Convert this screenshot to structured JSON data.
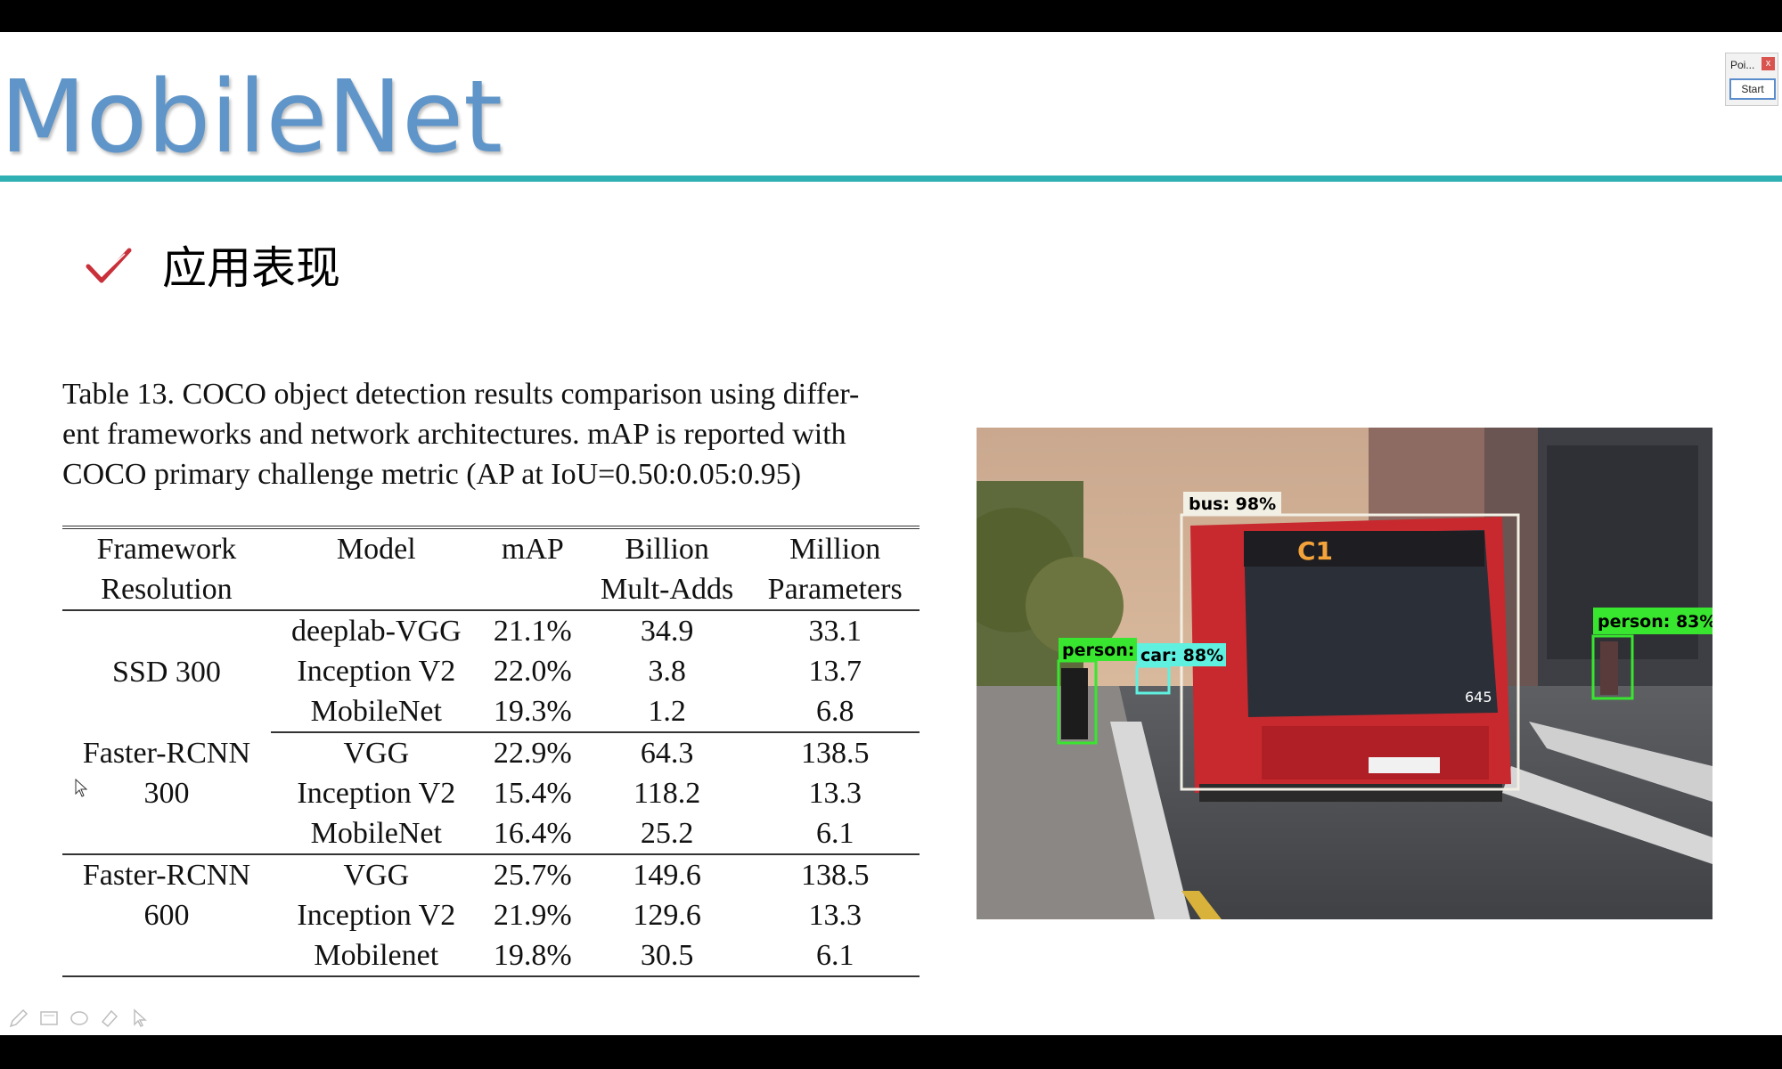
{
  "slide": {
    "title": "MobileNet",
    "bullet": "应用表现",
    "caption_lines": [
      "Table 13. COCO object detection results comparison using differ-",
      "ent frameworks and network architectures.  mAP is reported with",
      "COCO primary challenge metric (AP at IoU=0.50:0.05:0.95)"
    ]
  },
  "table": {
    "headers": {
      "framework": [
        "Framework",
        "Resolution"
      ],
      "model": "Model",
      "map": "mAP",
      "mult_adds": [
        "Billion",
        "Mult-Adds"
      ],
      "params": [
        "Million",
        "Parameters"
      ]
    },
    "groups": [
      {
        "framework": [
          "SSD 300"
        ],
        "rows": [
          {
            "model": "deeplab-VGG",
            "map": "21.1%",
            "mult_adds": "34.9",
            "params": "33.1"
          },
          {
            "model": "Inception V2",
            "map": "22.0%",
            "mult_adds": "3.8",
            "params": "13.7"
          },
          {
            "model": "MobileNet",
            "map": "19.3%",
            "mult_adds": "1.2",
            "params": "6.8"
          }
        ]
      },
      {
        "framework": [
          "Faster-RCNN",
          "300"
        ],
        "rows": [
          {
            "model": "VGG",
            "map": "22.9%",
            "mult_adds": "64.3",
            "params": "138.5"
          },
          {
            "model": "Inception V2",
            "map": "15.4%",
            "mult_adds": "118.2",
            "params": "13.3"
          },
          {
            "model": "MobileNet",
            "map": "16.4%",
            "mult_adds": "25.2",
            "params": "6.1"
          }
        ]
      },
      {
        "framework": [
          "Faster-RCNN",
          "600"
        ],
        "rows": [
          {
            "model": "VGG",
            "map": "25.7%",
            "mult_adds": "149.6",
            "params": "138.5"
          },
          {
            "model": "Inception V2",
            "map": "21.9%",
            "mult_adds": "129.6",
            "params": "13.3"
          },
          {
            "model": "Mobilenet",
            "map": "19.8%",
            "mult_adds": "30.5",
            "params": "6.1"
          }
        ]
      }
    ]
  },
  "detections": [
    {
      "label": "bus: 98%",
      "color": "#f2efe4"
    },
    {
      "label": "person:",
      "color": "#39e62f"
    },
    {
      "label": "car: 88%",
      "color": "#5ff0e0"
    },
    {
      "label": "person: 83%",
      "color": "#39e62f"
    }
  ],
  "bus_sign": "C1",
  "bus_number": "645",
  "widget": {
    "title": "Poi...",
    "close": "x",
    "start": "Start"
  },
  "toolbar": [
    "pen-icon",
    "screen-icon",
    "eraser-icon",
    "highlighter-icon",
    "pointer-icon"
  ],
  "colors": {
    "title": "#5f95c8",
    "rule": "#2fb0b3",
    "check": "#c9303a"
  }
}
